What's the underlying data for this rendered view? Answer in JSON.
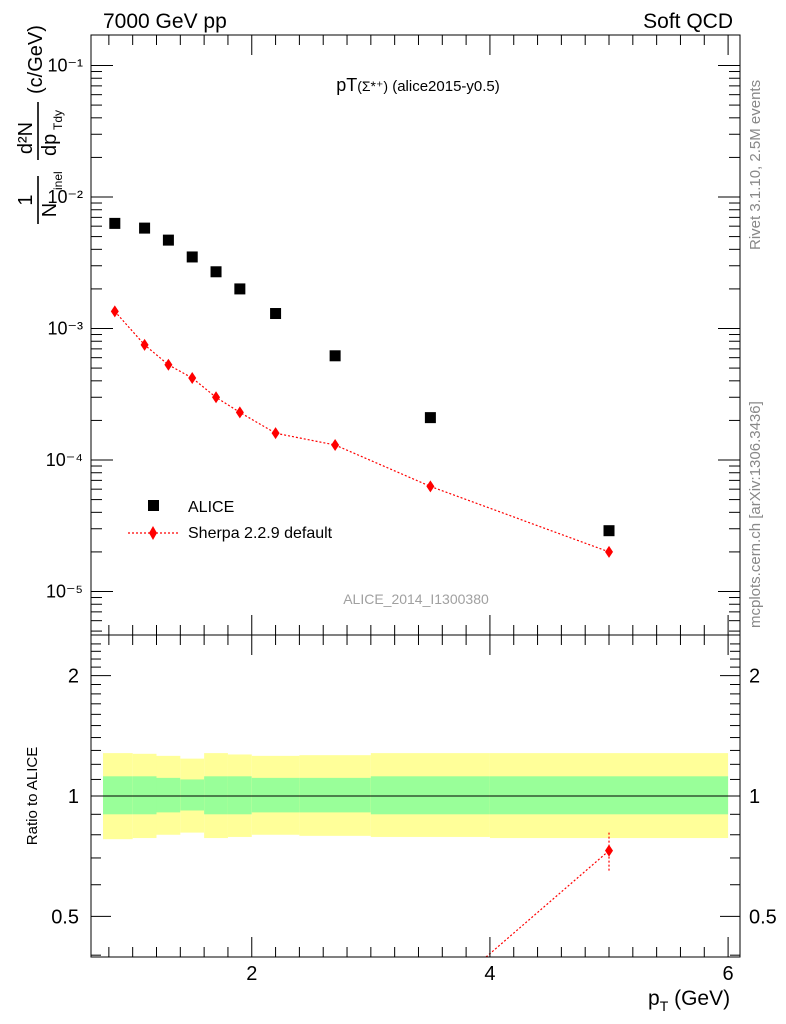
{
  "header": {
    "left": "7000 GeV pp",
    "right": "Soft QCD"
  },
  "side_labels": {
    "rivet": "Rivet 3.1.10,  2.5M events",
    "mcplots": "mcplots.cern.ch [arXiv:1306.3436]"
  },
  "main_panel": {
    "title_prefix": "pT",
    "title_particle": "(Σ*⁺)",
    "title_suffix": " (alice2015-y0.5)",
    "ylabel_frac_num": "1",
    "ylabel_frac_den": "N",
    "ylabel_den_sub": "inel",
    "ylabel_d_num": "d²N",
    "ylabel_d_den": "dp",
    "ylabel_d_den_sub": "Tdy",
    "ylabel_units": "(c/GeV)",
    "watermark": "ALICE_2014_I1300380",
    "legend": [
      {
        "label": "ALICE",
        "marker": "square",
        "color": "#000000"
      },
      {
        "label": "Sherpa 2.2.9 default",
        "marker": "diamond",
        "color": "#ff0000"
      }
    ]
  },
  "ratio_panel": {
    "ylabel": "Ratio to ALICE",
    "yticks": [
      "0.5",
      "1",
      "2"
    ]
  },
  "xaxis": {
    "label": "p",
    "label_sub": "T",
    "label_units": " (GeV)",
    "ticks": [
      "2",
      "4",
      "6"
    ]
  },
  "chart_data": [
    {
      "type": "scatter",
      "title": "pT(Σ*⁺) (alice2015-y0.5)",
      "xlabel": "pT (GeV)",
      "ylabel": "1/N_inel d²N/dp_Tdy (c/GeV)",
      "yscale": "log",
      "xlim": [
        0.65,
        6.1
      ],
      "ylim": [
        5e-06,
        0.15
      ],
      "yticks_labels": [
        "10⁻⁵",
        "10⁻⁴",
        "10⁻³",
        "10⁻²",
        "10⁻¹"
      ],
      "series": [
        {
          "name": "ALICE",
          "marker": "square",
          "color": "#000000",
          "x": [
            0.85,
            1.1,
            1.3,
            1.5,
            1.7,
            1.9,
            2.2,
            2.7,
            3.5,
            5.0
          ],
          "y": [
            0.0063,
            0.0058,
            0.0047,
            0.0035,
            0.0027,
            0.002,
            0.0013,
            0.00062,
            0.00021,
            2.9e-05
          ]
        },
        {
          "name": "Sherpa 2.2.9 default",
          "marker": "diamond",
          "line": "dotted",
          "color": "#ff0000",
          "x": [
            0.85,
            1.1,
            1.3,
            1.5,
            1.7,
            1.9,
            2.2,
            2.7,
            3.5,
            5.0
          ],
          "y": [
            0.00135,
            0.00075,
            0.00053,
            0.00042,
            0.0003,
            0.00023,
            0.00016,
            0.00013,
            6.3e-05,
            2e-05
          ]
        }
      ]
    },
    {
      "type": "line",
      "ylabel": "Ratio to ALICE",
      "yscale": "log",
      "ylim": [
        0.4,
        2.4
      ],
      "reference": 1.0,
      "bands": {
        "x_edges": [
          0.75,
          1.0,
          1.2,
          1.4,
          1.6,
          1.8,
          2.0,
          2.4,
          3.0,
          4.0,
          6.0
        ],
        "inner": {
          "color": "#99ff99",
          "lo": [
            0.9,
            0.9,
            0.91,
            0.92,
            0.9,
            0.9,
            0.91,
            0.91,
            0.9,
            0.9
          ],
          "hi": [
            1.12,
            1.12,
            1.11,
            1.1,
            1.12,
            1.12,
            1.11,
            1.11,
            1.12,
            1.12
          ]
        },
        "outer": {
          "color": "#ffff99",
          "lo": [
            0.78,
            0.785,
            0.8,
            0.81,
            0.785,
            0.79,
            0.8,
            0.795,
            0.79,
            0.785
          ],
          "hi": [
            1.28,
            1.275,
            1.26,
            1.24,
            1.28,
            1.27,
            1.26,
            1.265,
            1.28,
            1.28
          ]
        }
      },
      "series": [
        {
          "name": "Sherpa 2.2.9 default",
          "marker": "diamond",
          "line": "dotted",
          "color": "#ff0000",
          "x": [
            3.5,
            5.0
          ],
          "y": [
            0.3,
            0.73
          ],
          "yerr_lo": [
            0.0,
            0.08
          ],
          "yerr_hi": [
            0.0,
            0.08
          ]
        }
      ]
    }
  ]
}
